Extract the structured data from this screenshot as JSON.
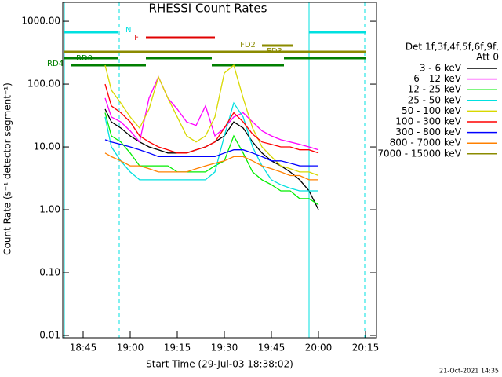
{
  "chart_data": {
    "type": "line",
    "title": "RHESSI Count Rates",
    "x_label": "Start Time (29-Jul-03 18:38:02)",
    "y_label": "Count Rate (s⁻¹ detector segment⁻¹)",
    "footer": "21-Oct-2021 14:35",
    "legend_header": [
      "Det 1f,3f,4f,5f,6f,9f,",
      "Att 0"
    ],
    "log_y": true,
    "xlim": [
      "18:38:30",
      "20:18:30"
    ],
    "xticks": [
      "18:45",
      "19:00",
      "19:15",
      "19:30",
      "19:45",
      "20:00",
      "20:15"
    ],
    "ylim": [
      0.01,
      2000
    ],
    "yticks": [
      {
        "value": 1000,
        "label": "1000.00"
      },
      {
        "value": 100,
        "label": "100.00"
      },
      {
        "value": 10,
        "label": "10.00"
      },
      {
        "value": 1,
        "label": "1.00"
      },
      {
        "value": 0.1,
        "label": "0.10"
      },
      {
        "value": 0.01,
        "label": "0.01"
      }
    ],
    "vlines": [
      {
        "x": "18:39",
        "color": "#00e0e0",
        "dashed": false
      },
      {
        "x": "18:56:30",
        "color": "#00e0e0",
        "dashed": true
      },
      {
        "x": "19:57",
        "color": "#00e0e0",
        "dashed": false
      },
      {
        "x": "20:14:45",
        "color": "#00e0e0",
        "dashed": true
      }
    ],
    "flags": [
      {
        "label": "N",
        "color": "#00e0e0",
        "segments": [
          [
            "18:39",
            "18:56"
          ],
          [
            "19:57",
            "20:15"
          ]
        ]
      },
      {
        "label": "F",
        "color": "#e00000",
        "segments": [
          [
            "19:05",
            "19:27"
          ]
        ]
      },
      {
        "label": "FD2",
        "color": "#8b8b00",
        "segments": [
          [
            "19:42",
            "19:52"
          ]
        ]
      },
      {
        "label": "FD3",
        "color": "#8b8b00",
        "segments": [
          [
            "18:39",
            "20:15"
          ]
        ]
      },
      {
        "label": "RD0",
        "color": "#007f00",
        "segments": [
          [
            "18:39",
            "18:56"
          ],
          [
            "19:05",
            "19:26"
          ],
          [
            "19:49",
            "20:15"
          ]
        ]
      },
      {
        "label": "RD4",
        "color": "#007f00",
        "segments": [
          [
            "18:41",
            "19:05"
          ],
          [
            "19:26",
            "19:49"
          ]
        ]
      }
    ],
    "x": [
      "18:52",
      "18:54",
      "18:57",
      "19:00",
      "19:03",
      "19:06",
      "19:09",
      "19:12",
      "19:15",
      "19:18",
      "19:21",
      "19:24",
      "19:27",
      "19:30",
      "19:33",
      "19:36",
      "19:39",
      "19:42",
      "19:45",
      "19:48",
      "19:51",
      "19:54",
      "19:57",
      "20:00"
    ],
    "series": [
      {
        "name": "3 - 6 keV",
        "color": "#000000",
        "values": [
          40,
          25,
          20,
          15,
          12,
          10,
          9,
          8,
          8,
          8,
          9,
          10,
          12,
          15,
          25,
          20,
          12,
          8,
          6,
          5,
          4,
          3,
          2,
          1
        ]
      },
      {
        "name": "6 - 12 keV",
        "color": "#ff00ff",
        "values": [
          60,
          30,
          25,
          18,
          12,
          60,
          130,
          60,
          40,
          25,
          22,
          45,
          15,
          20,
          30,
          35,
          25,
          18,
          15,
          13,
          12,
          11,
          10,
          9
        ]
      },
      {
        "name": "12 - 25 keV",
        "color": "#00ee00",
        "values": [
          35,
          15,
          12,
          8,
          5,
          5,
          5,
          5,
          4,
          4,
          4,
          4,
          5,
          6,
          15,
          8,
          4,
          3,
          2.5,
          2,
          2,
          1.5,
          1.5,
          1.2
        ]
      },
      {
        "name": "25 - 50 keV",
        "color": "#00e0e0",
        "values": [
          30,
          10,
          6,
          4,
          3,
          3,
          3,
          3,
          3,
          3,
          3,
          3,
          4,
          15,
          50,
          30,
          10,
          5,
          3,
          2.5,
          2.2,
          2,
          2,
          2
        ]
      },
      {
        "name": "50 - 100 keV",
        "color": "#d8d800",
        "values": [
          200,
          80,
          50,
          30,
          20,
          40,
          130,
          60,
          30,
          15,
          12,
          15,
          30,
          150,
          200,
          60,
          20,
          10,
          7,
          5,
          4.5,
          4,
          4,
          3.5
        ]
      },
      {
        "name": "100 - 300 keV",
        "color": "#ff0000",
        "values": [
          100,
          45,
          35,
          25,
          15,
          12,
          10,
          9,
          8,
          8,
          9,
          10,
          12,
          20,
          35,
          25,
          16,
          12,
          11,
          10,
          10,
          9,
          9,
          8
        ]
      },
      {
        "name": "300 - 800 keV",
        "color": "#0000ff",
        "values": [
          13,
          12,
          11,
          10,
          9,
          8,
          7,
          7,
          7,
          7,
          7,
          7,
          7,
          8,
          9,
          9,
          8,
          7,
          6,
          6,
          5.5,
          5,
          5,
          5
        ]
      },
      {
        "name": "800 - 7000 keV",
        "color": "#ff8000",
        "values": [
          8,
          7,
          6,
          5,
          5,
          4.5,
          4,
          4,
          4,
          4,
          4.5,
          5,
          5.5,
          6,
          7,
          7,
          6,
          5,
          4.5,
          4,
          3.5,
          3.5,
          3,
          3
        ]
      },
      {
        "name": "7000 - 15000 keV",
        "color": "#8b8b00",
        "values": [
          null,
          null,
          null,
          null,
          null,
          null,
          null,
          null,
          null,
          null,
          null,
          null,
          null,
          null,
          null,
          null,
          null,
          null,
          null,
          null,
          null,
          null,
          null,
          null
        ]
      }
    ]
  }
}
